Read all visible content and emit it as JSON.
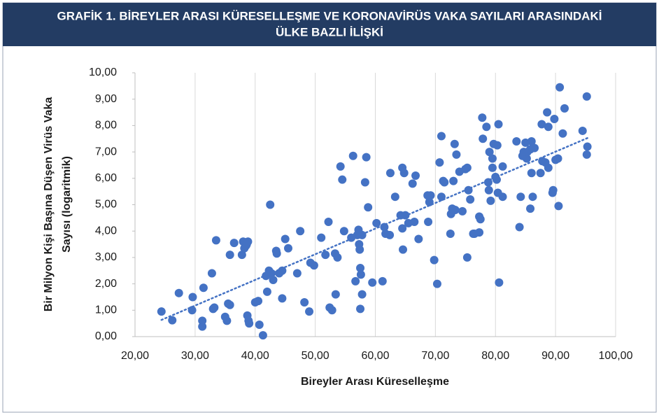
{
  "chart_data": {
    "type": "scatter",
    "title": [
      "GRAFİK 1. BİREYLER ARASI KÜRESELLEŞME VE KORONAVİRÜS VAKA SAYILARI ARASINDAKİ",
      "ÜLKE BAZLI İLİŞKİ"
    ],
    "x_label": "Bireyler Arası Küreselleşme",
    "y_label": [
      "Bir Milyon Kişi Başına Düşen Virüs Vaka",
      "Sayısı (logaritmik)"
    ],
    "color": "#4472c4",
    "grid": "x",
    "trendline": true,
    "xlim": [
      20,
      100
    ],
    "ylim": [
      0,
      10
    ],
    "xticks": [
      {
        "value": 20,
        "label": "20,00"
      },
      {
        "value": 30,
        "label": "30,00"
      },
      {
        "value": 40,
        "label": "40,00"
      },
      {
        "value": 50,
        "label": "50,00"
      },
      {
        "value": 60,
        "label": "60,00"
      },
      {
        "value": 70,
        "label": "70,00"
      },
      {
        "value": 80,
        "label": "80,00"
      },
      {
        "value": 90,
        "label": "90,00"
      },
      {
        "value": 100,
        "label": "100,00"
      }
    ],
    "yticks": [
      {
        "value": 0,
        "label": "0,00"
      },
      {
        "value": 1,
        "label": "1,00"
      },
      {
        "value": 2,
        "label": "2,00"
      },
      {
        "value": 3,
        "label": "3,00"
      },
      {
        "value": 4,
        "label": "4,00"
      },
      {
        "value": 5,
        "label": "5,00"
      },
      {
        "value": 6,
        "label": "6,00"
      },
      {
        "value": 7,
        "label": "7,00"
      },
      {
        "value": 8,
        "label": "8,00"
      },
      {
        "value": 9,
        "label": "9,00"
      },
      {
        "value": 10,
        "label": "10,00"
      }
    ],
    "x": [
      24.4,
      26.2,
      27.3,
      29.6,
      29.5,
      31.2,
      31.2,
      31.4,
      32.8,
      33.0,
      33.2,
      33.5,
      35.0,
      35.3,
      35.5,
      35.8,
      35.8,
      36.5,
      37.8,
      38.0,
      38.2,
      38.5,
      38.6,
      38.8,
      38.7,
      38.9,
      39.0,
      40.0,
      40.5,
      40.7,
      41.3,
      41.8,
      42.0,
      42.3,
      42.5,
      42.7,
      43.0,
      43.5,
      43.6,
      44.0,
      44.5,
      44.5,
      45.0,
      45.5,
      47.0,
      47.5,
      48.2,
      49.0,
      49.2,
      49.8,
      51.0,
      51.7,
      52.2,
      52.4,
      52.8,
      53.3,
      53.4,
      53.7,
      54.2,
      54.5,
      54.8,
      56.3,
      56.0,
      56.7,
      57.0,
      57.2,
      57.3,
      57.4,
      57.5,
      57.6,
      57.5,
      57.8,
      57.8,
      58.3,
      58.5,
      58.8,
      59.5,
      60.2,
      61.2,
      61.5,
      61.7,
      62.4,
      62.5,
      63.3,
      64.2,
      64.5,
      64.5,
      64.6,
      64.8,
      65.0,
      65.5,
      66.2,
      66.5,
      66.7,
      67.2,
      68.7,
      68.8,
      69.0,
      69.2,
      69.8,
      70.3,
      70.7,
      71.0,
      71.0,
      71.3,
      71.5,
      72.5,
      72.6,
      72.8,
      73.0,
      73.2,
      73.3,
      73.5,
      74.0,
      74.5,
      75.0,
      75.3,
      75.3,
      75.5,
      75.8,
      76.3,
      76.5,
      77.3,
      77.3,
      77.5,
      77.8,
      77.9,
      78.5,
      78.8,
      78.9,
      79.0,
      79.2,
      79.5,
      79.5,
      79.7,
      80.0,
      80.2,
      80.3,
      80.4,
      80.5,
      80.6,
      81.2,
      81.2,
      83.5,
      84.0,
      84.2,
      84.5,
      84.7,
      85.0,
      85.2,
      85.3,
      85.8,
      85.8,
      86.0,
      86.0,
      86.2,
      86.5,
      87.5,
      87.7,
      87.8,
      88.3,
      88.6,
      88.8,
      88.8,
      89.5,
      89.6,
      89.8,
      90.0,
      90.4,
      90.5,
      90.7,
      91.2,
      91.5,
      94.5,
      95.2,
      95.3,
      95.2
    ],
    "values": [
      0.95,
      0.62,
      1.65,
      1.5,
      1.0,
      0.6,
      0.38,
      1.85,
      2.4,
      1.05,
      1.1,
      3.65,
      0.75,
      0.6,
      1.25,
      1.2,
      3.1,
      3.55,
      3.1,
      3.6,
      3.35,
      3.45,
      3.5,
      3.6,
      0.8,
      0.6,
      0.5,
      1.3,
      1.35,
      0.45,
      0.05,
      2.3,
      1.7,
      2.5,
      5.0,
      2.4,
      2.15,
      3.25,
      3.15,
      2.4,
      1.45,
      2.5,
      3.7,
      3.35,
      2.4,
      4.0,
      1.3,
      0.95,
      2.8,
      2.7,
      3.75,
      3.1,
      4.35,
      1.1,
      1.0,
      3.15,
      1.6,
      3.0,
      6.45,
      5.95,
      4.0,
      6.85,
      3.75,
      2.1,
      3.85,
      4.05,
      3.5,
      3.3,
      2.6,
      2.35,
      1.05,
      3.85,
      1.6,
      5.85,
      6.8,
      4.9,
      2.05,
      4.3,
      2.1,
      4.15,
      3.9,
      3.85,
      6.2,
      5.3,
      4.6,
      6.4,
      4.1,
      3.3,
      6.2,
      4.6,
      4.3,
      5.8,
      4.35,
      6.1,
      3.7,
      5.35,
      4.35,
      5.1,
      5.35,
      2.9,
      2.0,
      6.6,
      7.6,
      5.3,
      5.9,
      5.85,
      3.9,
      4.65,
      4.85,
      5.9,
      7.3,
      4.8,
      6.9,
      6.25,
      4.75,
      6.35,
      6.4,
      3.0,
      5.55,
      5.2,
      3.9,
      3.9,
      3.95,
      4.55,
      4.45,
      8.3,
      7.5,
      7.95,
      5.85,
      5.55,
      7.0,
      5.15,
      6.75,
      6.4,
      7.3,
      6.05,
      5.95,
      7.25,
      5.45,
      8.05,
      2.05,
      6.45,
      5.3,
      7.4,
      4.15,
      5.3,
      6.85,
      7.0,
      7.35,
      6.75,
      7.0,
      7.1,
      4.85,
      6.2,
      7.4,
      5.3,
      7.15,
      6.2,
      8.05,
      6.65,
      6.6,
      8.5,
      7.95,
      6.4,
      5.45,
      5.55,
      8.25,
      6.7,
      6.75,
      4.95,
      9.45,
      7.7,
      8.65,
      7.8,
      9.1,
      7.2,
      6.9
    ]
  }
}
